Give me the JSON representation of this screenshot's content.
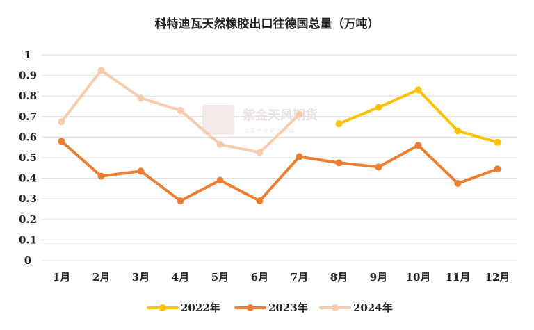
{
  "chart_data": {
    "type": "line",
    "title": "科特迪瓦天然橡胶出口往德国总量（万吨）",
    "categories": [
      "1月",
      "2月",
      "3月",
      "4月",
      "5月",
      "6月",
      "7月",
      "8月",
      "9月",
      "10月",
      "11月",
      "12月"
    ],
    "ylim": [
      0,
      1
    ],
    "yticks": [
      "0",
      "0.1",
      "0.2",
      "0.3",
      "0.4",
      "0.5",
      "0.6",
      "0.7",
      "0.8",
      "0.9",
      "1"
    ],
    "grid": true,
    "legend_position": "bottom",
    "series": [
      {
        "name": "2022年",
        "color": "#FFC000",
        "values": [
          null,
          null,
          null,
          null,
          null,
          null,
          null,
          0.665,
          0.745,
          0.83,
          0.63,
          0.575
        ]
      },
      {
        "name": "2023年",
        "color": "#ED7D31",
        "values": [
          0.58,
          0.41,
          0.435,
          0.29,
          0.39,
          0.29,
          0.505,
          0.475,
          0.455,
          0.56,
          0.375,
          0.445
        ]
      },
      {
        "name": "2024年",
        "color": "#F8CBAD",
        "values": [
          0.675,
          0.925,
          0.79,
          0.73,
          0.565,
          0.525,
          0.71,
          null,
          null,
          null,
          null,
          null
        ]
      }
    ]
  },
  "watermark": {
    "logo_text": "紫金\n天风",
    "name": "紫金天风期货",
    "slogan": "立 足 产 业   研 究 驱 动"
  }
}
